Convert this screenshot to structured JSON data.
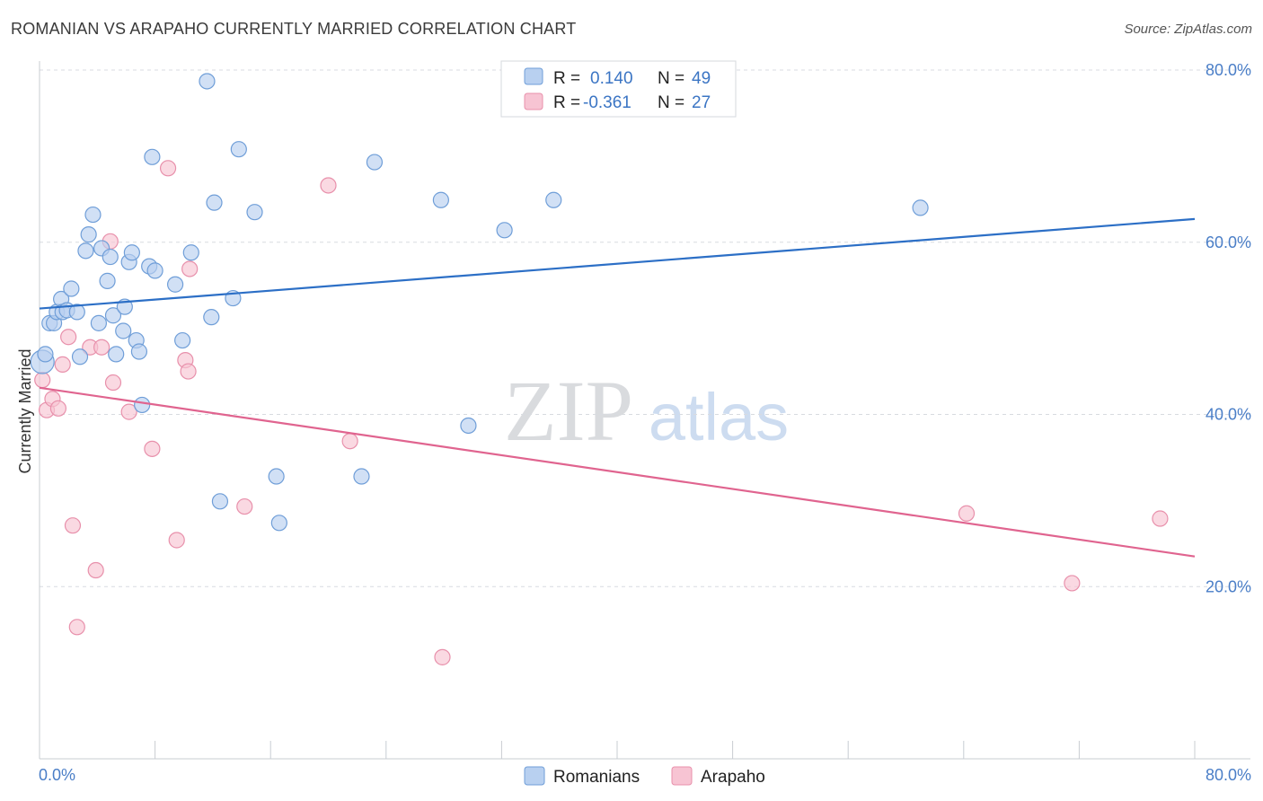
{
  "header": {
    "title": "ROMANIAN VS ARAPAHO CURRENTLY MARRIED CORRELATION CHART",
    "source": "Source: ZipAtlas.com"
  },
  "watermark": {
    "zip": "ZIP",
    "atlas": "atlas"
  },
  "legend": {
    "r_label": "R =",
    "n_label": "N =",
    "rows": [
      {
        "r": "0.140",
        "n": "49"
      },
      {
        "r": "-0.361",
        "n": "27"
      }
    ]
  },
  "colors": {
    "romanians_fill": "#b8d0f0",
    "romanians_stroke": "#6f9ed8",
    "romanians_line": "#2c6fc6",
    "arapaho_fill": "#f7c4d3",
    "arapaho_stroke": "#e890ab",
    "arapaho_line": "#e0648f",
    "tick_text": "#4a7ec7",
    "grid": "#d8dbe0"
  },
  "chart_data": {
    "type": "scatter",
    "title": "ROMANIAN VS ARAPAHO CURRENTLY MARRIED CORRELATION CHART",
    "xlabel": "",
    "ylabel": "Currently Married",
    "xlim": [
      0,
      80
    ],
    "ylim": [
      0,
      80
    ],
    "x_tick_labels": [
      "0.0%",
      "80.0%"
    ],
    "y_ticks": [
      20,
      40,
      60,
      80
    ],
    "y_tick_labels": [
      "20.0%",
      "40.0%",
      "60.0%",
      "80.0%"
    ],
    "grid": true,
    "legend_position": "top-center",
    "series": [
      {
        "name": "Romanians",
        "r": 0.14,
        "n": 49,
        "trend": {
          "x": [
            0,
            80
          ],
          "y": [
            52.3,
            62.7
          ]
        },
        "points": [
          [
            0.2,
            46.1
          ],
          [
            0.4,
            47.0
          ],
          [
            0.7,
            50.6
          ],
          [
            1.0,
            50.6
          ],
          [
            1.2,
            51.9
          ],
          [
            1.5,
            53.4
          ],
          [
            1.6,
            51.9
          ],
          [
            1.9,
            52.1
          ],
          [
            2.2,
            54.6
          ],
          [
            2.6,
            51.9
          ],
          [
            2.8,
            46.7
          ],
          [
            3.2,
            59.0
          ],
          [
            3.4,
            60.9
          ],
          [
            3.7,
            63.2
          ],
          [
            4.1,
            50.6
          ],
          [
            4.3,
            59.3
          ],
          [
            4.7,
            55.5
          ],
          [
            4.9,
            58.3
          ],
          [
            5.1,
            51.5
          ],
          [
            5.3,
            47.0
          ],
          [
            5.8,
            49.7
          ],
          [
            5.9,
            52.5
          ],
          [
            6.2,
            57.7
          ],
          [
            6.4,
            58.8
          ],
          [
            6.7,
            48.6
          ],
          [
            6.9,
            47.3
          ],
          [
            7.1,
            41.1
          ],
          [
            7.6,
            57.2
          ],
          [
            7.8,
            69.9
          ],
          [
            8.0,
            56.7
          ],
          [
            9.4,
            55.1
          ],
          [
            9.9,
            48.6
          ],
          [
            10.5,
            58.8
          ],
          [
            11.6,
            78.7
          ],
          [
            11.9,
            51.3
          ],
          [
            12.1,
            64.6
          ],
          [
            12.5,
            29.9
          ],
          [
            13.4,
            53.5
          ],
          [
            13.8,
            70.8
          ],
          [
            14.9,
            63.5
          ],
          [
            16.4,
            32.8
          ],
          [
            16.6,
            27.4
          ],
          [
            22.3,
            32.8
          ],
          [
            23.2,
            69.3
          ],
          [
            27.8,
            64.9
          ],
          [
            29.7,
            38.7
          ],
          [
            32.2,
            61.4
          ],
          [
            35.6,
            64.9
          ],
          [
            61.0,
            64.0
          ]
        ]
      },
      {
        "name": "Arapaho",
        "r": -0.361,
        "n": 27,
        "trend": {
          "x": [
            0,
            80
          ],
          "y": [
            43.1,
            23.5
          ]
        },
        "points": [
          [
            0.2,
            44.0
          ],
          [
            0.5,
            40.5
          ],
          [
            0.9,
            41.8
          ],
          [
            1.3,
            40.7
          ],
          [
            1.6,
            45.8
          ],
          [
            2.0,
            49.0
          ],
          [
            2.3,
            27.1
          ],
          [
            2.6,
            15.3
          ],
          [
            3.5,
            47.8
          ],
          [
            3.9,
            21.9
          ],
          [
            4.3,
            47.8
          ],
          [
            4.9,
            60.1
          ],
          [
            5.1,
            43.7
          ],
          [
            6.2,
            40.3
          ],
          [
            7.8,
            36.0
          ],
          [
            8.9,
            68.6
          ],
          [
            9.5,
            25.4
          ],
          [
            10.1,
            46.3
          ],
          [
            10.3,
            45.0
          ],
          [
            10.4,
            56.9
          ],
          [
            14.2,
            29.3
          ],
          [
            20.0,
            66.6
          ],
          [
            21.5,
            36.9
          ],
          [
            27.9,
            11.8
          ],
          [
            64.2,
            28.5
          ],
          [
            71.5,
            20.4
          ],
          [
            77.6,
            27.9
          ]
        ]
      }
    ]
  }
}
